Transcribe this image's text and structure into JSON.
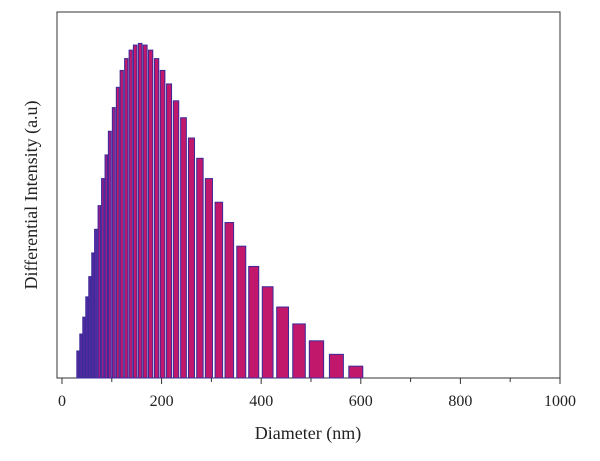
{
  "chart_data": {
    "type": "bar",
    "xlabel": "Diameter (nm)",
    "ylabel": "Differential Intensity (a.u)",
    "xlim": [
      -10,
      1000
    ],
    "ylim": [
      0,
      1.0
    ],
    "x_ticks": [
      "0",
      "200",
      "400",
      "600",
      "800",
      "1000"
    ],
    "x_tick_values": [
      0,
      200,
      400,
      600,
      800,
      1000
    ],
    "y_ticks_labeled": false,
    "grid": false,
    "legend": "none",
    "bar_fill": "#c2186b",
    "bar_fill_small": "#5a2aa0",
    "bar_edge": "#3a2a9a",
    "x": [
      32,
      38,
      44,
      50,
      56,
      62,
      68,
      75,
      82,
      89,
      96,
      104,
      112,
      120,
      129,
      138,
      147,
      157,
      167,
      178,
      190,
      202,
      215,
      229,
      244,
      260,
      277,
      295,
      315,
      336,
      360,
      385,
      413,
      443,
      476,
      511,
      551,
      590
    ],
    "values": [
      0.08,
      0.13,
      0.18,
      0.24,
      0.3,
      0.37,
      0.44,
      0.51,
      0.59,
      0.66,
      0.73,
      0.8,
      0.86,
      0.91,
      0.945,
      0.97,
      0.985,
      0.99,
      0.985,
      0.97,
      0.945,
      0.91,
      0.87,
      0.82,
      0.77,
      0.71,
      0.65,
      0.59,
      0.52,
      0.46,
      0.39,
      0.33,
      0.27,
      0.21,
      0.16,
      0.11,
      0.07,
      0.035
    ]
  }
}
